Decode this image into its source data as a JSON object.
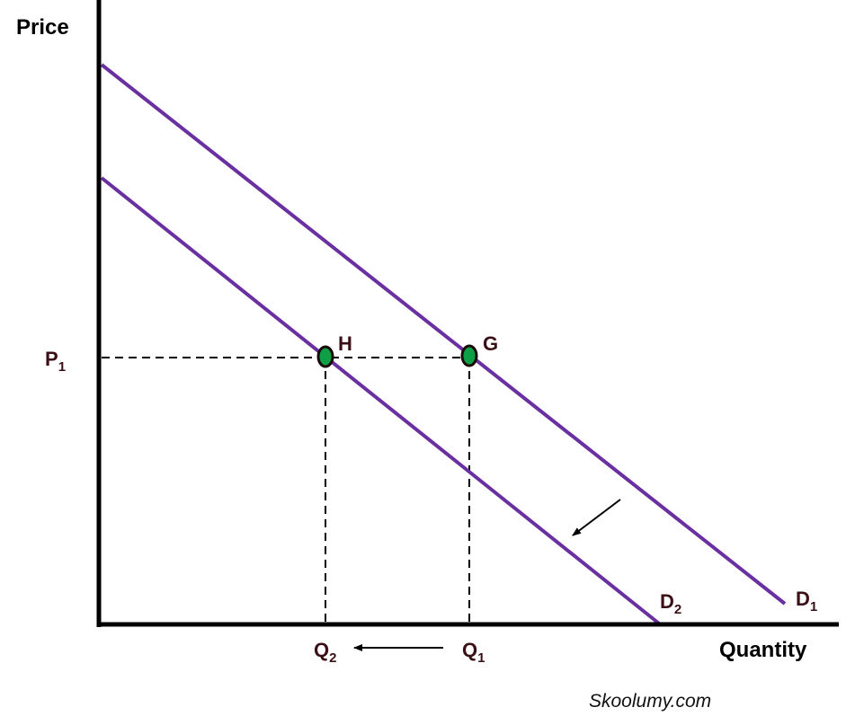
{
  "axes": {
    "y_label": "Price",
    "x_label": "Quantity"
  },
  "price_labels": [
    {
      "main": "P",
      "sub": "1"
    }
  ],
  "quantity_labels": [
    {
      "main": "Q",
      "sub": "2"
    },
    {
      "main": "Q",
      "sub": "1"
    }
  ],
  "curves": [
    {
      "main": "D",
      "sub": "1"
    },
    {
      "main": "D",
      "sub": "2"
    }
  ],
  "points": [
    "H",
    "G"
  ],
  "watermark": "Skoolumy.com"
}
